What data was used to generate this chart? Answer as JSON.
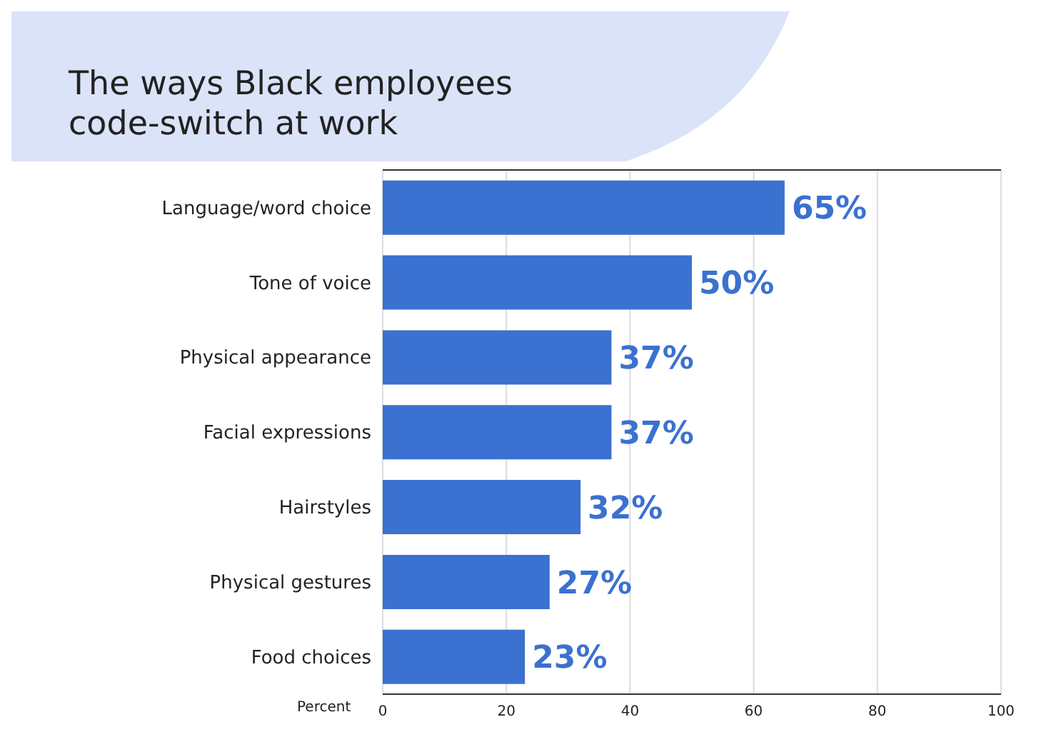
{
  "chart_data": {
    "type": "bar",
    "orientation": "horizontal",
    "title": "The ways Black employees\ncode-switch at work",
    "xlabel": "Percent",
    "categories": [
      "Language/word choice",
      "Tone of voice",
      "Physical appearance",
      "Facial expressions",
      "Hairstyles",
      "Physical gestures",
      "Food choices"
    ],
    "values": [
      65,
      50,
      37,
      37,
      32,
      27,
      23
    ],
    "value_labels": [
      "65%",
      "50%",
      "37%",
      "37%",
      "32%",
      "27%",
      "23%"
    ],
    "color": "#3b71d0",
    "xlim": [
      0,
      100
    ],
    "xticks": [
      0,
      20,
      40,
      60,
      80,
      100
    ],
    "grid": "x"
  }
}
